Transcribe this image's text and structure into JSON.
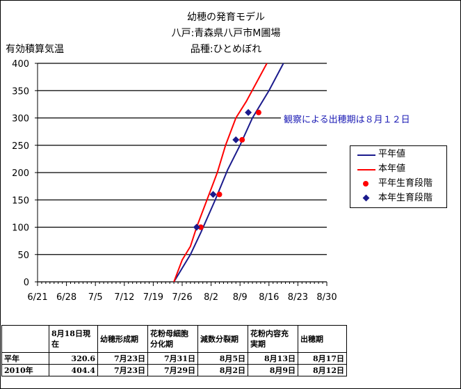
{
  "title": {
    "line1": "幼穂の発育モデル",
    "line2": "八戸:青森県八戸市M圃場",
    "line3": "品種:ひとめぼれ"
  },
  "colors": {
    "normal_year": "#1a1a8c",
    "this_year": "#ff0000",
    "normal_year_marker": "#ff0000",
    "this_year_marker": "#1a1a8c",
    "annotation": "#1a1ab4"
  },
  "chart_data": {
    "type": "line",
    "ylabel": "有効積算気温",
    "xlabel": "",
    "x_tick_labels": [
      "6/21",
      "6/28",
      "7/5",
      "7/12",
      "7/19",
      "7/26",
      "8/2",
      "8/9",
      "8/16",
      "8/23",
      "8/30"
    ],
    "x_tick_days": [
      0,
      7,
      14,
      21,
      28,
      35,
      42,
      49,
      56,
      63,
      70
    ],
    "x_range_days": [
      0,
      70
    ],
    "ylim": [
      0,
      400
    ],
    "y_ticks": [
      0,
      50,
      100,
      150,
      200,
      250,
      300,
      350,
      400
    ],
    "grid": "horizontal",
    "legend_position": "right",
    "series": [
      {
        "name": "平年値",
        "kind": "line",
        "points": [
          [
            33,
            0
          ],
          [
            37,
            50
          ],
          [
            39.5,
            90
          ],
          [
            43,
            150
          ],
          [
            46,
            205
          ],
          [
            49,
            250
          ],
          [
            52,
            300
          ],
          [
            56,
            350
          ],
          [
            59.5,
            400
          ]
        ]
      },
      {
        "name": "本年値",
        "kind": "line",
        "points": [
          [
            33,
            0
          ],
          [
            35,
            40
          ],
          [
            37,
            65
          ],
          [
            38.5,
            100
          ],
          [
            41,
            150
          ],
          [
            43.5,
            200
          ],
          [
            45.5,
            250
          ],
          [
            48,
            300
          ],
          [
            50.5,
            330
          ],
          [
            53,
            365
          ],
          [
            55.5,
            400
          ]
        ]
      },
      {
        "name": "平年生育段階",
        "kind": "marker",
        "marker": "circle",
        "points": [
          [
            39.5,
            100
          ],
          [
            44,
            160
          ],
          [
            49.5,
            260
          ],
          [
            53.5,
            310
          ]
        ]
      },
      {
        "name": "本年生育段階",
        "kind": "marker",
        "marker": "diamond",
        "points": [
          [
            38.5,
            100
          ],
          [
            42.5,
            160
          ],
          [
            48,
            260
          ],
          [
            51,
            310
          ]
        ]
      }
    ],
    "annotations": [
      {
        "text": "観察による出穂期は８月１２日",
        "x": 53,
        "y": 300
      }
    ]
  },
  "table": {
    "headers": [
      "",
      "8月18日現在",
      "幼穂形成期",
      "花粉母細胞分化期",
      "減数分裂期",
      "花粉内容充実期",
      "出穂期"
    ],
    "rows": [
      [
        "平年",
        "320.6",
        "7月23日",
        "7月31日",
        "8月5日",
        "8月13日",
        "8月17日"
      ],
      [
        "2010年",
        "404.4",
        "7月23日",
        "7月29日",
        "8月2日",
        "8月9日",
        "8月12日"
      ]
    ]
  }
}
